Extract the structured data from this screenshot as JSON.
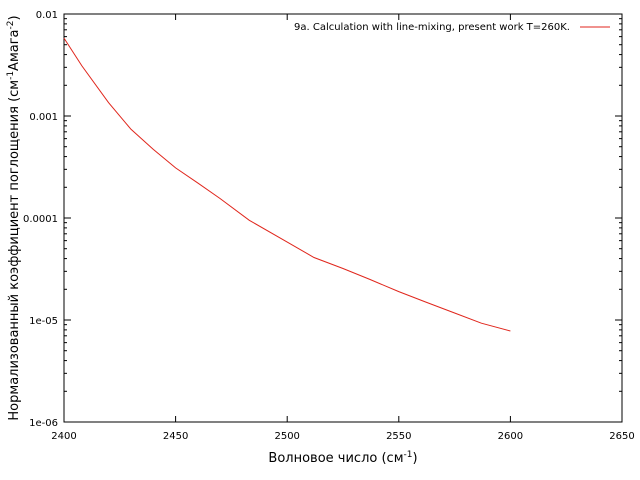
{
  "chart_data": {
    "type": "line",
    "xlabel": "Волновое число (см",
    "xlabel_sup": "-1",
    "xlabel_end": ")",
    "ylabel": "Нормализованный коэффициент поглощения (см",
    "ylabel_sup1": "-1",
    "ylabel_mid": "Амага",
    "ylabel_sup2": "-2",
    "ylabel_end": ")",
    "xlim": [
      2400,
      2650
    ],
    "ylim": [
      1e-06,
      0.01
    ],
    "y_scale": "log",
    "x_ticks": [
      2400,
      2450,
      2500,
      2550,
      2600,
      2650
    ],
    "x_tick_labels": [
      "2400",
      "2450",
      "2500",
      "2550",
      "2600",
      "2650"
    ],
    "y_ticks": [
      0.01,
      0.001,
      0.0001,
      1e-05,
      1e-06
    ],
    "y_tick_labels": [
      "0.01",
      "0.001",
      "0.0001",
      "1e-05",
      "1e-06"
    ],
    "grid": false,
    "legend": "top-right",
    "series": [
      {
        "name": "9a. Calculation with line-mixing, present work T=260K.",
        "color": "#e0261c",
        "x": [
          2400,
          2408,
          2420,
          2430,
          2440,
          2450,
          2460,
          2470,
          2483,
          2500,
          2512,
          2525,
          2537,
          2550,
          2562,
          2575,
          2587,
          2600
        ],
        "y": [
          0.0058,
          0.0031,
          0.00135,
          0.00074,
          0.00047,
          0.00031,
          0.00022,
          0.000155,
          9.5e-05,
          5.8e-05,
          4.1e-05,
          3.2e-05,
          2.5e-05,
          1.9e-05,
          1.5e-05,
          1.17e-05,
          9.3e-06,
          7.8e-06
        ]
      }
    ]
  }
}
